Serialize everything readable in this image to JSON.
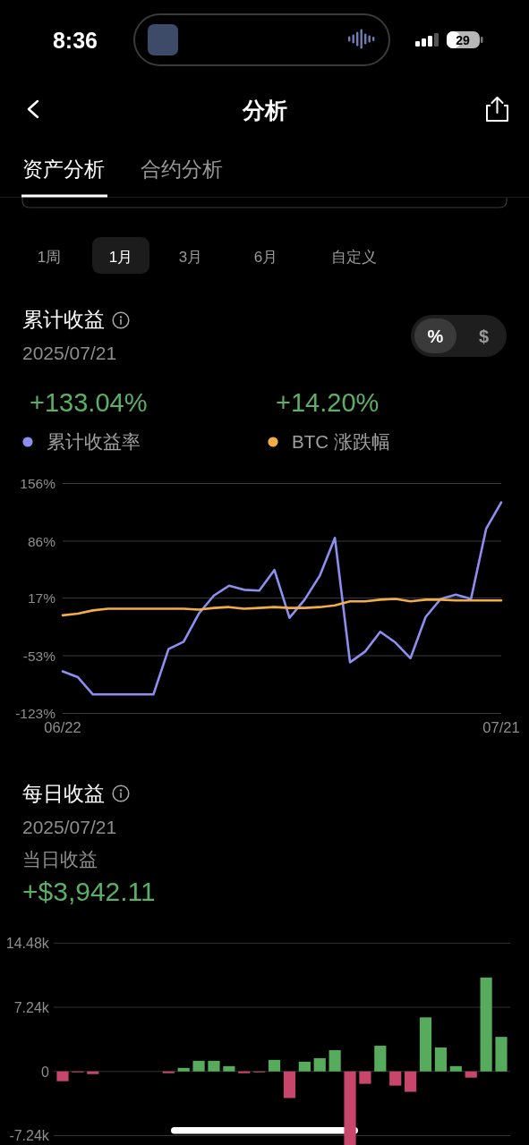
{
  "chart_data": [
    {
      "type": "other",
      "annotations": [
        "8:36",
        "29",
        "分析",
        "资产分析",
        "合约分析",
        "1周",
        "1月",
        "3月",
        "6月",
        "自定义"
      ]
    },
    {
      "type": "line",
      "title": "累计收益",
      "subtitle": "2025/07/21",
      "annotations": [
        "%",
        "$",
        "+133.04%",
        "+14.20%"
      ],
      "categories": [
        "06/22",
        null,
        null,
        null,
        null,
        null,
        null,
        null,
        null,
        null,
        null,
        null,
        null,
        null,
        null,
        null,
        null,
        null,
        null,
        null,
        null,
        null,
        null,
        null,
        null,
        null,
        null,
        null,
        null,
        "07/21"
      ],
      "series": [
        {
          "name": "累计收益率",
          "color": "#8c8ff0",
          "values": [
            -72,
            -79,
            -100,
            -100,
            -100,
            -100,
            -100,
            -45,
            -36,
            -2,
            20,
            32,
            27,
            26,
            51,
            -7,
            15,
            44,
            90,
            -61,
            -48,
            -24,
            -37,
            -56,
            -6,
            16,
            21,
            16,
            101,
            133
          ]
        },
        {
          "name": "BTC 涨跌幅",
          "color": "#f2ae45",
          "values": [
            -4,
            -2,
            2,
            4,
            4,
            4,
            4,
            4,
            4,
            3,
            5,
            6,
            4,
            5,
            6,
            5,
            5,
            6,
            8,
            13,
            13,
            15,
            16,
            13,
            15,
            15,
            14,
            14,
            14,
            14
          ]
        }
      ],
      "ylim": [
        -123,
        156
      ],
      "yticks": [
        {
          "value": -123,
          "label": "-123%"
        },
        {
          "value": -53,
          "label": "-53%"
        },
        {
          "value": 17,
          "label": "17%"
        },
        {
          "value": 86,
          "label": "86%"
        },
        {
          "value": 156,
          "label": "156%"
        }
      ],
      "grid": "y",
      "legend": "top"
    },
    {
      "type": "bar",
      "title": "每日收益",
      "subtitle": "2025/07/21",
      "annotations": [
        "当日收益",
        "+$3,942.11"
      ],
      "categories": [
        null,
        null,
        null,
        null,
        null,
        null,
        null,
        null,
        null,
        null,
        null,
        null,
        null,
        null,
        null,
        null,
        null,
        null,
        null,
        null,
        null,
        null,
        null,
        null,
        null,
        null,
        null,
        null,
        null,
        null
      ],
      "values": [
        -1100,
        -100,
        -300,
        0,
        0,
        0,
        0,
        -200,
        400,
        1200,
        1200,
        600,
        -200,
        -100,
        1300,
        -3000,
        1100,
        1500,
        2400,
        -8300,
        -1400,
        2900,
        -1600,
        -2300,
        6100,
        2700,
        600,
        -700,
        10600,
        3900
      ],
      "colors": [
        "#c8466b",
        "#c8466b",
        "#c8466b",
        null,
        null,
        null,
        null,
        "#c8466b",
        "#56ab5c",
        "#56ab5c",
        "#56ab5c",
        "#56ab5c",
        "#c8466b",
        "#c8466b",
        "#56ab5c",
        "#c8466b",
        "#56ab5c",
        "#56ab5c",
        "#56ab5c",
        "#c8466b",
        "#c8466b",
        "#56ab5c",
        "#c8466b",
        "#c8466b",
        "#56ab5c",
        "#56ab5c",
        "#56ab5c",
        "#c8466b",
        "#56ab5c",
        "#56ab5c"
      ],
      "ylim": [
        -8300,
        14480
      ],
      "yticks": [
        {
          "value": -7240,
          "label": "-7.24k"
        },
        0,
        {
          "value": 7240,
          "label": "7.24k"
        },
        {
          "value": 14480,
          "label": "14.48k"
        }
      ],
      "grid": "y"
    }
  ]
}
